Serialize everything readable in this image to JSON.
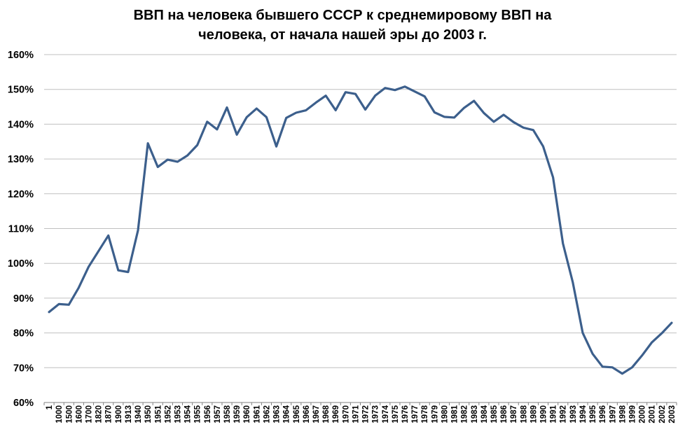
{
  "title": {
    "line1": "ВВП на человека бывшего СССР к среднемировому ВВП на",
    "line2": "человека, от начала нашей эры до 2003 г."
  },
  "colors": {
    "line": "#3c5f8c",
    "grid": "#c0c0c0",
    "axis": "#808080"
  },
  "chart_data": {
    "type": "line",
    "title": "ВВП на человека бывшего СССР к среднемировому ВВП на человека, от начала нашей эры до 2003 г.",
    "xlabel": "",
    "ylabel": "",
    "ylim": [
      0.6,
      1.6
    ],
    "y_ticks": [
      "60%",
      "70%",
      "80%",
      "90%",
      "100%",
      "110%",
      "120%",
      "130%",
      "140%",
      "150%",
      "160%"
    ],
    "grid": true,
    "legend": "none",
    "categories": [
      "1",
      "1000",
      "1500",
      "1600",
      "1700",
      "1820",
      "1870",
      "1900",
      "1913",
      "1940",
      "1950",
      "1951",
      "1952",
      "1953",
      "1954",
      "1955",
      "1956",
      "1957",
      "1958",
      "1959",
      "1960",
      "1961",
      "1962",
      "1963",
      "1964",
      "1965",
      "1966",
      "1967",
      "1968",
      "1969",
      "1970",
      "1971",
      "1972",
      "1973",
      "1974",
      "1975",
      "1976",
      "1977",
      "1978",
      "1979",
      "1980",
      "1981",
      "1982",
      "1983",
      "1984",
      "1985",
      "1986",
      "1987",
      "1988",
      "1989",
      "1990",
      "1991",
      "1992",
      "1993",
      "1994",
      "1995",
      "1996",
      "1997",
      "1998",
      "1999",
      "2000",
      "2001",
      "2002",
      "2003"
    ],
    "series": [
      {
        "values": [
          0.86,
          0.883,
          0.881,
          0.93,
          0.99,
          1.035,
          1.08,
          0.98,
          0.975,
          1.095,
          1.345,
          1.277,
          1.298,
          1.292,
          1.31,
          1.34,
          1.407,
          1.385,
          1.448,
          1.37,
          1.42,
          1.445,
          1.42,
          1.336,
          1.418,
          1.433,
          1.44,
          1.462,
          1.482,
          1.44,
          1.492,
          1.487,
          1.442,
          1.482,
          1.504,
          1.498,
          1.508,
          1.494,
          1.48,
          1.434,
          1.421,
          1.419,
          1.447,
          1.467,
          1.432,
          1.407,
          1.427,
          1.406,
          1.39,
          1.383,
          1.336,
          1.247,
          1.057,
          0.945,
          0.8,
          0.74,
          0.703,
          0.701,
          0.683,
          0.701,
          0.735,
          0.773,
          0.799,
          0.829
        ]
      }
    ]
  }
}
